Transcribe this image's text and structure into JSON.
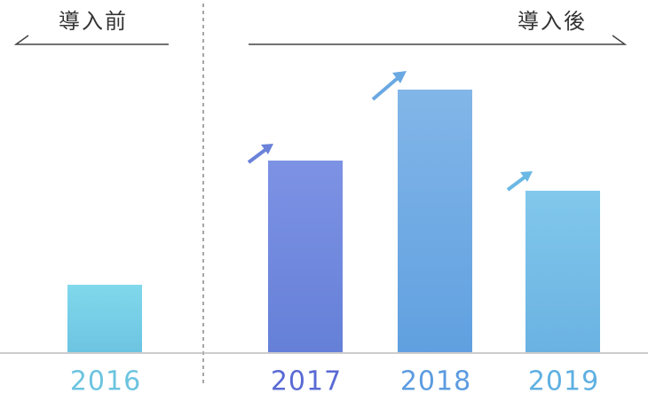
{
  "header": {
    "before": "導入前",
    "after": "導入後"
  },
  "chart_data": {
    "type": "bar",
    "categories": [
      "2016",
      "2017",
      "2018",
      "2019"
    ],
    "values": [
      76,
      216,
      296,
      182
    ],
    "colors": [
      [
        "#80d8ec",
        "#6cc4e2"
      ],
      [
        "#7d92e4",
        "#6580d8"
      ],
      [
        "#82b6e8",
        "#60a0e0"
      ],
      [
        "#82c8ec",
        "#6ab2e2"
      ]
    ],
    "label_colors": [
      "#6cc4e0",
      "#5a6ad4",
      "#5c9ce0",
      "#5fb0e2"
    ]
  }
}
